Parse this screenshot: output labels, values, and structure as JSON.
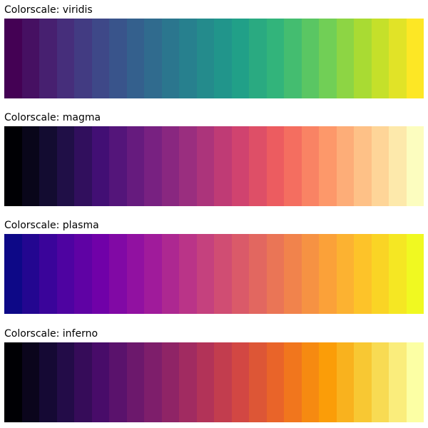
{
  "chart_data": [
    {
      "type": "heatmap",
      "title": "Colorscale: viridis",
      "colorscale": "viridis",
      "steps": 24,
      "colors": [
        "#440154",
        "#482878",
        "#3e4989",
        "#31688e",
        "#26828e",
        "#1f9e89",
        "#35b779",
        "#6ece58",
        "#b5de2b",
        "#fde725"
      ]
    },
    {
      "type": "heatmap",
      "title": "Colorscale: magma",
      "colorscale": "magma",
      "steps": 24,
      "colors": [
        "#000004",
        "#180f3d",
        "#440f76",
        "#721f81",
        "#9e2f7f",
        "#cd4071",
        "#f1605d",
        "#fd9668",
        "#feca8d",
        "#fcfdbf"
      ]
    },
    {
      "type": "heatmap",
      "title": "Colorscale: plasma",
      "colorscale": "plasma",
      "steps": 24,
      "colors": [
        "#0d0887",
        "#46039f",
        "#7201a8",
        "#9c179e",
        "#bd3786",
        "#d8576b",
        "#ed7953",
        "#fb9f3a",
        "#fdca26",
        "#f0f921"
      ]
    },
    {
      "type": "heatmap",
      "title": "Colorscale: inferno",
      "colorscale": "inferno",
      "steps": 24,
      "colors": [
        "#000004",
        "#1b0c41",
        "#4a0c6b",
        "#781c6d",
        "#a52c60",
        "#cf4446",
        "#ed6925",
        "#fb9b06",
        "#f7d13d",
        "#fcffa4"
      ]
    }
  ]
}
